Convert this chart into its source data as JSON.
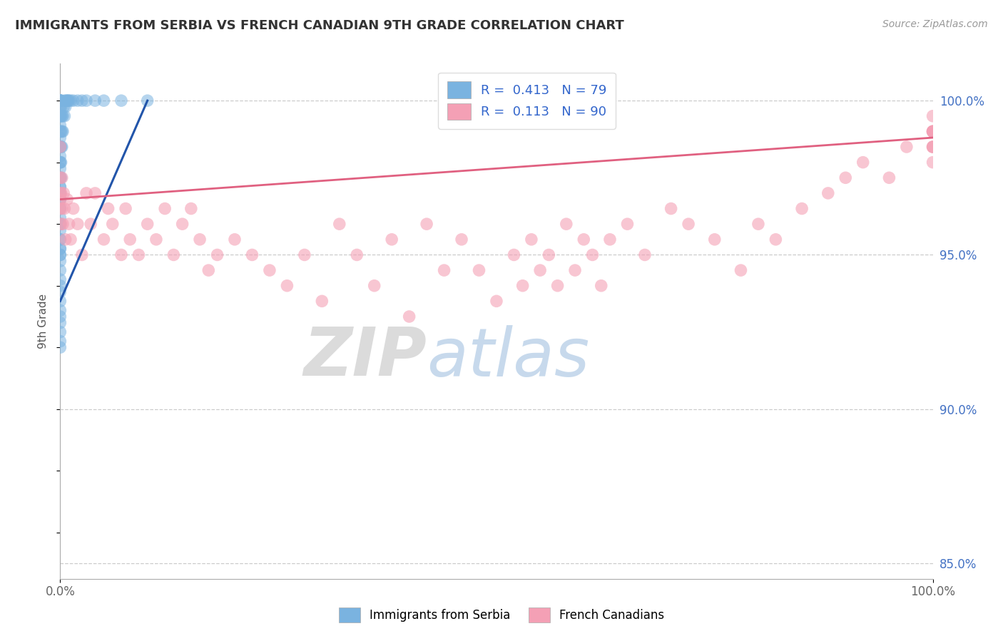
{
  "title": "IMMIGRANTS FROM SERBIA VS FRENCH CANADIAN 9TH GRADE CORRELATION CHART",
  "source": "Source: ZipAtlas.com",
  "ylabel": "9th Grade",
  "color_blue": "#7ab3e0",
  "color_pink": "#f4a0b5",
  "color_blue_line": "#2255aa",
  "color_pink_line": "#e06080",
  "watermark_zip": "ZIP",
  "watermark_atlas": "atlas",
  "background": "#ffffff",
  "serbia_x": [
    0.0,
    0.0,
    0.0,
    0.0,
    0.0,
    0.0,
    0.0,
    0.0,
    0.0,
    0.0,
    0.0,
    0.0,
    0.0,
    0.0,
    0.0,
    0.0,
    0.0,
    0.0,
    0.0,
    0.0,
    0.0,
    0.0,
    0.0,
    0.0,
    0.0,
    0.0,
    0.0,
    0.0,
    0.0,
    0.0,
    0.0,
    0.0,
    0.0,
    0.0,
    0.0,
    0.0,
    0.0,
    0.0,
    0.0,
    0.0,
    0.0,
    0.0,
    0.0,
    0.0,
    0.0,
    0.0,
    0.0,
    0.0,
    0.0,
    0.0,
    0.1,
    0.1,
    0.1,
    0.1,
    0.1,
    0.1,
    0.1,
    0.2,
    0.2,
    0.2,
    0.3,
    0.3,
    0.4,
    0.5,
    0.5,
    0.6,
    0.7,
    0.8,
    0.9,
    1.0,
    1.2,
    1.5,
    2.0,
    2.5,
    3.0,
    4.0,
    5.0,
    7.0,
    10.0
  ],
  "serbia_y": [
    100.0,
    100.0,
    100.0,
    100.0,
    100.0,
    100.0,
    99.8,
    99.5,
    99.5,
    99.2,
    99.0,
    98.8,
    98.5,
    98.2,
    98.0,
    97.8,
    97.5,
    97.2,
    97.0,
    96.8,
    96.5,
    96.2,
    96.0,
    95.8,
    95.5,
    95.2,
    95.0,
    94.8,
    94.5,
    94.2,
    94.0,
    93.8,
    93.5,
    93.2,
    93.0,
    92.8,
    92.5,
    92.2,
    92.0,
    95.5,
    95.2,
    95.0,
    96.0,
    96.5,
    97.0,
    97.5,
    98.0,
    98.5,
    96.8,
    97.2,
    97.5,
    98.0,
    98.5,
    99.0,
    99.5,
    100.0,
    99.8,
    98.5,
    99.0,
    99.5,
    99.0,
    99.5,
    99.8,
    99.5,
    100.0,
    99.8,
    100.0,
    100.0,
    100.0,
    100.0,
    100.0,
    100.0,
    100.0,
    100.0,
    100.0,
    100.0,
    100.0,
    100.0,
    100.0
  ],
  "french_x": [
    0.0,
    0.0,
    0.0,
    0.0,
    0.0,
    0.1,
    0.1,
    0.2,
    0.2,
    0.3,
    0.4,
    0.5,
    0.6,
    0.8,
    1.0,
    1.2,
    1.5,
    2.0,
    2.5,
    3.0,
    3.5,
    4.0,
    5.0,
    5.5,
    6.0,
    7.0,
    7.5,
    8.0,
    9.0,
    10.0,
    11.0,
    12.0,
    13.0,
    14.0,
    15.0,
    16.0,
    17.0,
    18.0,
    20.0,
    22.0,
    24.0,
    26.0,
    28.0,
    30.0,
    32.0,
    34.0,
    36.0,
    38.0,
    40.0,
    42.0,
    44.0,
    46.0,
    48.0,
    50.0,
    52.0,
    53.0,
    54.0,
    55.0,
    56.0,
    57.0,
    58.0,
    59.0,
    60.0,
    61.0,
    62.0,
    63.0,
    65.0,
    67.0,
    70.0,
    72.0,
    75.0,
    78.0,
    80.0,
    82.0,
    85.0,
    88.0,
    90.0,
    92.0,
    95.0,
    97.0,
    100.0,
    100.0,
    100.0,
    100.0,
    100.0,
    100.0,
    100.0,
    100.0,
    100.0,
    100.0
  ],
  "french_y": [
    98.5,
    97.5,
    97.0,
    96.8,
    96.5,
    97.0,
    96.0,
    97.5,
    96.5,
    96.0,
    97.0,
    96.5,
    95.5,
    96.8,
    96.0,
    95.5,
    96.5,
    96.0,
    95.0,
    97.0,
    96.0,
    97.0,
    95.5,
    96.5,
    96.0,
    95.0,
    96.5,
    95.5,
    95.0,
    96.0,
    95.5,
    96.5,
    95.0,
    96.0,
    96.5,
    95.5,
    94.5,
    95.0,
    95.5,
    95.0,
    94.5,
    94.0,
    95.0,
    93.5,
    96.0,
    95.0,
    94.0,
    95.5,
    93.0,
    96.0,
    94.5,
    95.5,
    94.5,
    93.5,
    95.0,
    94.0,
    95.5,
    94.5,
    95.0,
    94.0,
    96.0,
    94.5,
    95.5,
    95.0,
    94.0,
    95.5,
    96.0,
    95.0,
    96.5,
    96.0,
    95.5,
    94.5,
    96.0,
    95.5,
    96.5,
    97.0,
    97.5,
    98.0,
    97.5,
    98.5,
    99.0,
    98.5,
    99.0,
    99.5,
    98.0,
    99.0,
    98.5,
    99.0,
    98.5,
    99.0
  ],
  "blue_trend_x0": 0.0,
  "blue_trend_y0": 93.5,
  "blue_trend_x1": 10.0,
  "blue_trend_y1": 100.0,
  "pink_trend_x0": 0.0,
  "pink_trend_y0": 96.8,
  "pink_trend_x1": 100.0,
  "pink_trend_y1": 98.8,
  "ylim_min": 84.5,
  "ylim_max": 101.2,
  "xlim_min": 0.0,
  "xlim_max": 100.0
}
